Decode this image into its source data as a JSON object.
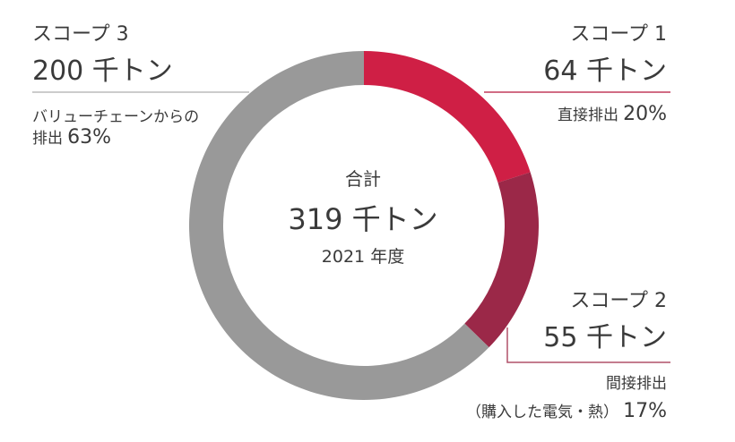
{
  "chart_data": {
    "type": "pie",
    "variant": "donut",
    "center": {
      "label": "合計",
      "value": "319 千トン",
      "year": "2021 年度"
    },
    "unit": "千トン",
    "slices": [
      {
        "title": "スコープ 1",
        "value": 64,
        "value_label": "64 千トン",
        "desc_line1": "直接排出",
        "desc_line2": "",
        "percent_label": "20%",
        "color": "#cf1f45"
      },
      {
        "title": "スコープ 2",
        "value": 55,
        "value_label": "55 千トン",
        "desc_line1": "間接排出",
        "desc_line2": "（購入した電気・熱）",
        "percent_label": "17%",
        "color": "#9b2848"
      },
      {
        "title": "スコープ 3",
        "value": 200,
        "value_label": "200 千トン",
        "desc_line1": "バリューチェーンからの",
        "desc_line2": "排出",
        "percent_label": "63%",
        "color": "#999999"
      }
    ],
    "leader_colors": {
      "scope1": "#c23b5b",
      "scope2": "#b05068",
      "scope3": "#bbbbbb"
    }
  }
}
